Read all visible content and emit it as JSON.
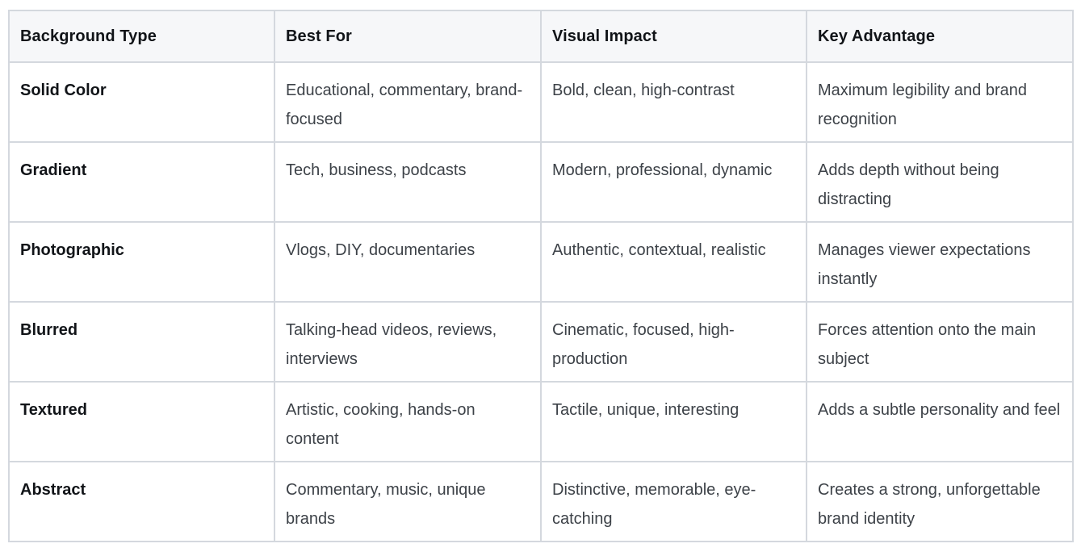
{
  "table": {
    "headers": [
      "Background Type",
      "Best For",
      "Visual Impact",
      "Key Advantage"
    ],
    "rows": [
      [
        "Solid Color",
        "Educational, commentary, brand-focused",
        "Bold, clean, high-contrast",
        "Maximum legibility and brand recognition"
      ],
      [
        "Gradient",
        "Tech, business, podcasts",
        "Modern, professional, dynamic",
        "Adds depth without being distracting"
      ],
      [
        "Photographic",
        "Vlogs, DIY, documentaries",
        "Authentic, contextual, realistic",
        "Manages viewer expectations instantly"
      ],
      [
        "Blurred",
        "Talking-head videos, reviews, interviews",
        "Cinematic, focused, high-production",
        "Forces attention onto the main subject"
      ],
      [
        "Textured",
        "Artistic, cooking, hands-on content",
        "Tactile, unique, interesting",
        "Adds a subtle personality and feel"
      ],
      [
        "Abstract",
        "Commentary, music, unique brands",
        "Distinctive, memorable, eye-catching",
        "Creates a strong, unforgettable brand identity"
      ]
    ]
  },
  "colors": {
    "border": "#d4d8de",
    "header_bg": "#f6f7f9",
    "text": "#3d4248",
    "heading_text": "#111418"
  }
}
